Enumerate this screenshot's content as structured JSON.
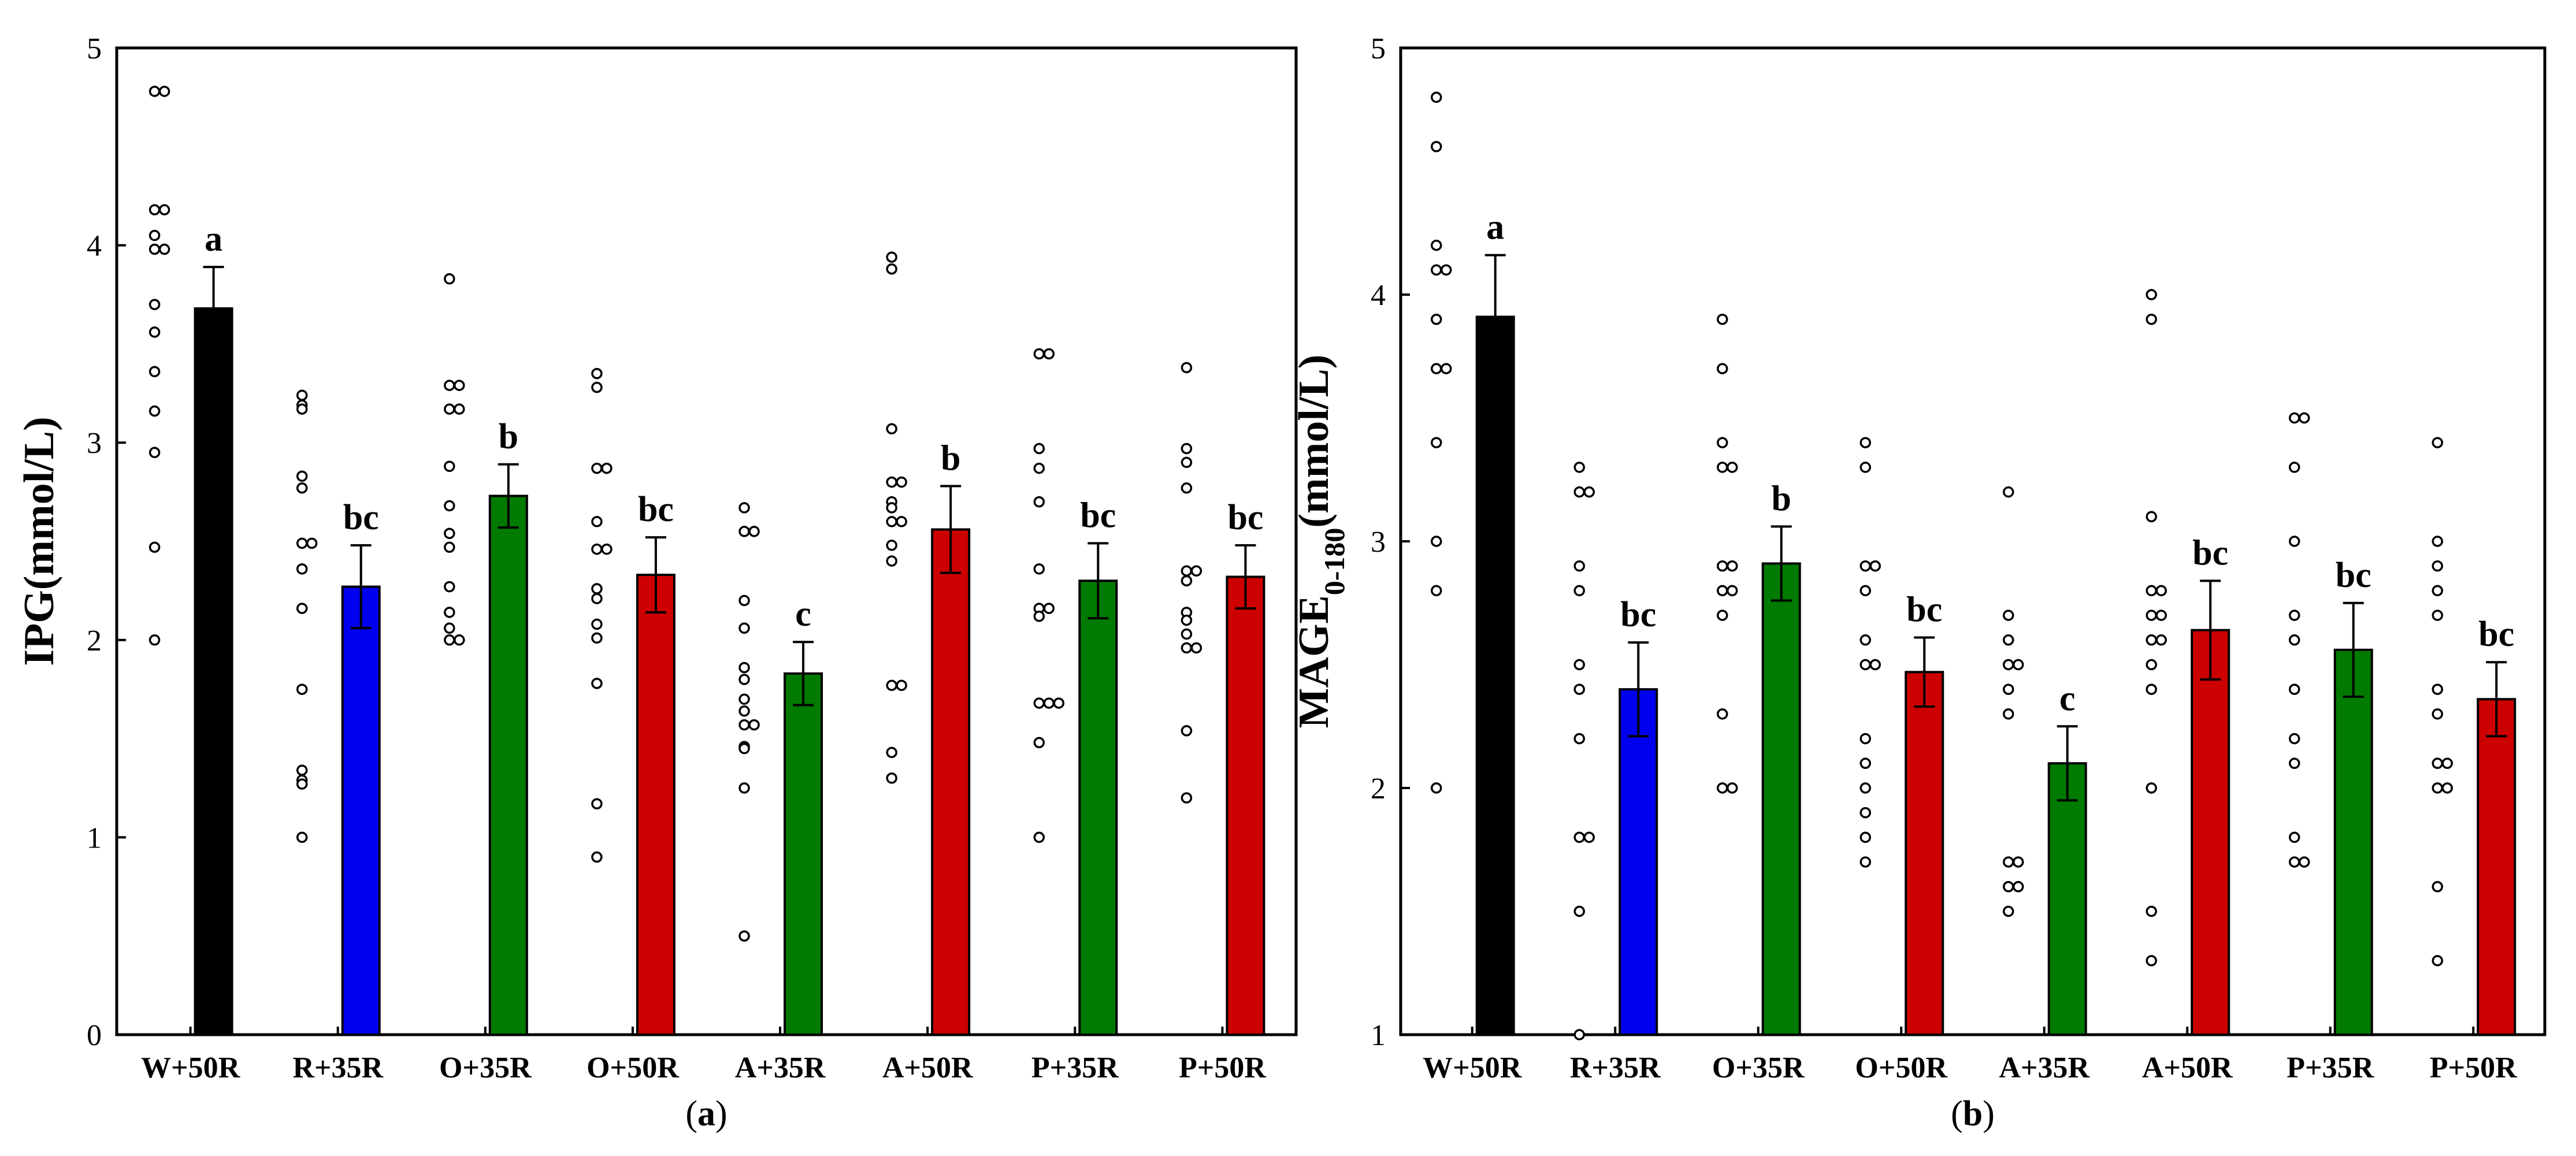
{
  "chart_data": [
    {
      "type": "bar",
      "panel_label": "(a)",
      "ylabel": "IPG(mmol/L)",
      "ylim": [
        0,
        5
      ],
      "yticks": [
        "0",
        "1",
        "2",
        "3",
        "4",
        "5"
      ],
      "categories": [
        "W+50R",
        "R+35R",
        "O+35R",
        "O+50R",
        "A+35R",
        "A+50R",
        "P+35R",
        "P+50R"
      ],
      "values": [
        3.68,
        2.27,
        2.73,
        2.33,
        1.83,
        2.56,
        2.3,
        2.32
      ],
      "errors": [
        0.21,
        0.21,
        0.16,
        0.19,
        0.16,
        0.22,
        0.19,
        0.16
      ],
      "letters": [
        "a",
        "bc",
        "b",
        "bc",
        "c",
        "b",
        "bc",
        "bc"
      ],
      "colors": [
        "#000000",
        "#0000ee",
        "#007a00",
        "#cc0000",
        "#007a00",
        "#cc0000",
        "#007a00",
        "#cc0000"
      ],
      "points": [
        [
          4.78,
          4.78,
          4.18,
          4.18,
          4.05,
          3.98,
          3.98,
          3.7,
          3.56,
          3.36,
          3.16,
          2.95,
          2.47,
          2.0
        ],
        [
          3.24,
          3.19,
          3.17,
          2.83,
          2.77,
          2.49,
          2.49,
          2.36,
          2.16,
          1.75,
          1.34,
          1.29,
          1.27,
          1.0
        ],
        [
          3.83,
          3.29,
          3.29,
          3.17,
          3.17,
          2.88,
          2.68,
          2.54,
          2.47,
          2.27,
          2.14,
          2.06,
          2.0,
          2.0
        ],
        [
          3.35,
          3.28,
          2.87,
          2.87,
          2.6,
          2.46,
          2.46,
          2.26,
          2.21,
          2.08,
          2.01,
          1.78,
          1.17,
          0.9
        ],
        [
          2.67,
          2.55,
          2.55,
          2.2,
          2.06,
          1.86,
          1.8,
          1.7,
          1.64,
          1.57,
          1.57,
          1.46,
          1.45,
          1.25,
          0.5
        ],
        [
          3.94,
          3.88,
          3.07,
          2.8,
          2.8,
          2.7,
          2.67,
          2.6,
          2.6,
          2.48,
          2.4,
          1.77,
          1.77,
          1.43,
          1.3
        ],
        [
          3.45,
          3.45,
          2.97,
          2.87,
          2.7,
          2.36,
          2.16,
          2.16,
          2.12,
          1.68,
          1.68,
          1.68,
          1.48,
          1.0
        ],
        [
          3.38,
          2.97,
          2.9,
          2.77,
          2.35,
          2.35,
          2.3,
          2.14,
          2.1,
          2.03,
          1.96,
          1.96,
          1.54,
          1.2
        ]
      ]
    },
    {
      "type": "bar",
      "panel_label": "(b)",
      "ylabel": "MAGE",
      "ylabel_sub": "0-180",
      "ylabel_suffix": "(mmol/L)",
      "ylim": [
        1,
        5
      ],
      "yticks": [
        "1",
        "2",
        "3",
        "4",
        "5"
      ],
      "categories": [
        "W+50R",
        "R+35R",
        "O+35R",
        "O+50R",
        "A+35R",
        "A+50R",
        "P+35R",
        "P+50R"
      ],
      "values": [
        3.91,
        2.4,
        2.91,
        2.47,
        2.1,
        2.64,
        2.56,
        2.36
      ],
      "errors": [
        0.25,
        0.19,
        0.15,
        0.14,
        0.15,
        0.2,
        0.19,
        0.15
      ],
      "letters": [
        "a",
        "bc",
        "b",
        "bc",
        "c",
        "bc",
        "bc",
        "bc"
      ],
      "colors": [
        "#000000",
        "#0000ee",
        "#007a00",
        "#cc0000",
        "#007a00",
        "#cc0000",
        "#007a00",
        "#cc0000"
      ],
      "points": [
        [
          4.8,
          4.6,
          4.2,
          4.1,
          4.1,
          3.9,
          3.7,
          3.7,
          3.4,
          3.0,
          2.8,
          2.0
        ],
        [
          3.3,
          3.2,
          3.2,
          2.9,
          2.8,
          2.5,
          2.4,
          2.2,
          1.8,
          1.8,
          1.5,
          1.0
        ],
        [
          3.9,
          3.7,
          3.4,
          3.3,
          3.3,
          2.9,
          2.9,
          2.8,
          2.8,
          2.7,
          2.3,
          2.0,
          2.0
        ],
        [
          3.4,
          3.3,
          2.9,
          2.9,
          2.8,
          2.6,
          2.5,
          2.5,
          2.2,
          2.1,
          2.0,
          1.9,
          1.8,
          1.7
        ],
        [
          3.2,
          2.7,
          2.6,
          2.5,
          2.5,
          2.4,
          2.3,
          1.7,
          1.7,
          1.6,
          1.6,
          1.5
        ],
        [
          4.0,
          3.9,
          3.1,
          2.8,
          2.8,
          2.7,
          2.7,
          2.6,
          2.6,
          2.5,
          2.4,
          2.0,
          1.5,
          1.3
        ],
        [
          3.5,
          3.5,
          3.3,
          3.0,
          2.7,
          2.6,
          2.4,
          2.2,
          2.1,
          1.8,
          1.7,
          1.7
        ],
        [
          3.4,
          3.0,
          2.9,
          2.8,
          2.7,
          2.4,
          2.3,
          2.1,
          2.1,
          2.0,
          2.0,
          1.6,
          1.3
        ]
      ]
    }
  ]
}
